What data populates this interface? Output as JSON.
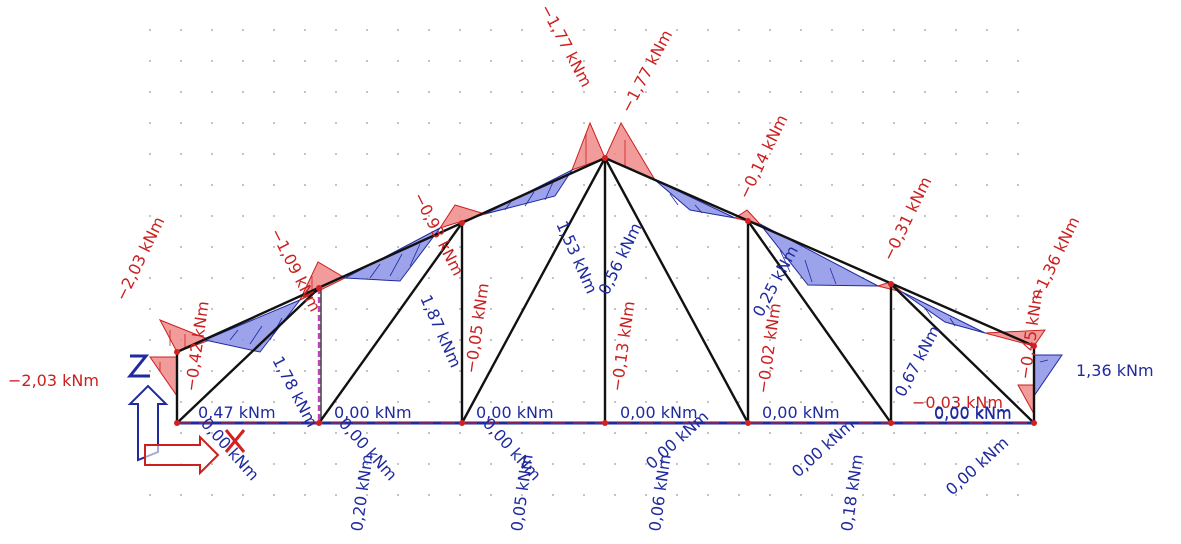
{
  "colors": {
    "negative": "#cc1f1f",
    "positive": "#1f2a9e",
    "negative_fill": "#f08a8a",
    "positive_fill": "#8c93e6",
    "member": "#111111",
    "support": "#d42020",
    "grid_dot": "#9a9a9a"
  },
  "icons": {
    "support": "pinned-support-icon",
    "axis": "coordinate-axis-icon"
  },
  "labels": [
    {
      "id": "left-end-moment",
      "text": "−2,03 kNm",
      "sign": "neg"
    },
    {
      "id": "left-top-moment",
      "text": "−2,03 kNm",
      "sign": "neg"
    },
    {
      "id": "top-node1-moment",
      "text": "−1,09 kNm",
      "sign": "neg"
    },
    {
      "id": "top-node2-moment",
      "text": "−0,93 kNm",
      "sign": "neg"
    },
    {
      "id": "apex-left-moment",
      "text": "−1,77 kNm",
      "sign": "neg"
    },
    {
      "id": "apex-right-moment",
      "text": "−1,77 kNm",
      "sign": "neg"
    },
    {
      "id": "top-node4-moment",
      "text": "−0,14 kNm",
      "sign": "neg"
    },
    {
      "id": "top-node5-moment",
      "text": "−0,31 kNm",
      "sign": "neg"
    },
    {
      "id": "right-top-moment",
      "text": "−1,36 kNm",
      "sign": "neg"
    },
    {
      "id": "right-end-moment",
      "text": "1,36 kNm",
      "sign": "pos"
    },
    {
      "id": "left-post-moment",
      "text": "−0,42 kNm",
      "sign": "neg"
    },
    {
      "id": "right-post-moment",
      "text": "−0,45 kNm",
      "sign": "neg"
    },
    {
      "id": "diag1-moment",
      "text": "1,78 kNm",
      "sign": "pos"
    },
    {
      "id": "diag2-moment",
      "text": "1,87 kNm",
      "sign": "pos"
    },
    {
      "id": "diag3-moment",
      "text": "1,53 kNm",
      "sign": "pos"
    },
    {
      "id": "diag4-moment",
      "text": "0,56 kNm",
      "sign": "pos"
    },
    {
      "id": "diag5-moment",
      "text": "0,25 kNm",
      "sign": "pos"
    },
    {
      "id": "diag6-moment",
      "text": "0,67 kNm",
      "sign": "pos"
    },
    {
      "id": "post2-moment",
      "text": "−0,05 kNm",
      "sign": "neg"
    },
    {
      "id": "post3-moment",
      "text": "−0,13 kNm",
      "sign": "neg"
    },
    {
      "id": "post4-moment",
      "text": "−0,02 kNm",
      "sign": "neg"
    },
    {
      "id": "post5-moment",
      "text": "−0,03 kNm",
      "sign": "neg"
    },
    {
      "id": "bottom1-moment",
      "text": "0,47 kNm",
      "sign": "pos"
    },
    {
      "id": "bottom2-moment",
      "text": "0,00 kNm",
      "sign": "pos"
    },
    {
      "id": "bottom3-moment",
      "text": "0,00 kNm",
      "sign": "pos"
    },
    {
      "id": "bottom4-moment",
      "text": "0,00 kNm",
      "sign": "pos"
    },
    {
      "id": "bottom5-moment",
      "text": "0,00 kNm",
      "sign": "pos"
    },
    {
      "id": "bottom6-moment",
      "text": "0,00 kNm",
      "sign": "pos"
    },
    {
      "id": "bottom7-moment",
      "text": "0,00 kNm",
      "sign": "pos"
    },
    {
      "id": "under1-moment",
      "text": "0,00 kNm",
      "sign": "pos"
    },
    {
      "id": "under2-moment",
      "text": "0,00 kNm",
      "sign": "pos"
    },
    {
      "id": "under3-moment",
      "text": "0,00 kNm",
      "sign": "pos"
    },
    {
      "id": "under4-moment",
      "text": "0,00 kNm",
      "sign": "pos"
    },
    {
      "id": "under5-moment",
      "text": "0,00 kNm",
      "sign": "pos"
    },
    {
      "id": "under6-moment",
      "text": "0,00 kNm",
      "sign": "pos"
    },
    {
      "id": "vert1-moment",
      "text": "0,20 kNm",
      "sign": "pos"
    },
    {
      "id": "vert2-moment",
      "text": "0,05 kNm",
      "sign": "pos"
    },
    {
      "id": "vert3-moment",
      "text": "0,06 kNm",
      "sign": "pos"
    },
    {
      "id": "vert4-moment",
      "text": "0,18 kNm",
      "sign": "pos"
    }
  ]
}
